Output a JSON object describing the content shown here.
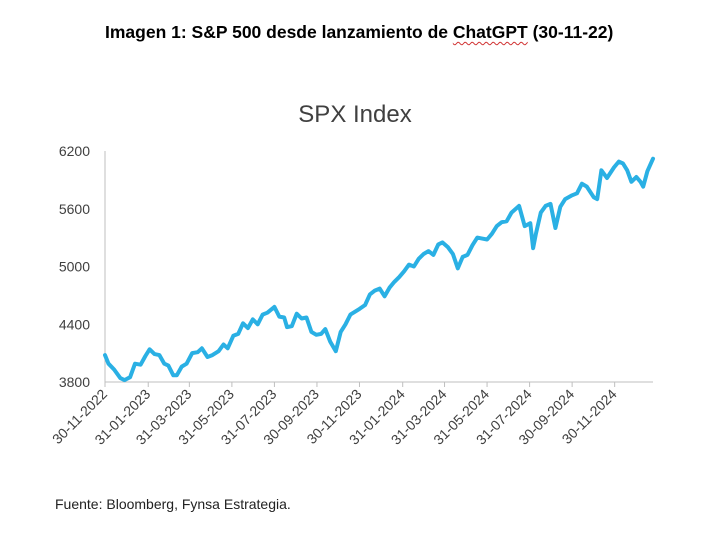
{
  "header": {
    "title_prefix": "Imagen 1: S&P 500 desde lanzamiento de ",
    "title_word": "ChatGPT",
    "title_suffix": " (30-11-22)"
  },
  "footer": {
    "source": "Fuente: Bloomberg, Fynsa Estrategia."
  },
  "colors": {
    "line": "#2ab0e4",
    "axis": "#bfbfbf",
    "text": "#404040"
  },
  "chart_data": {
    "type": "line",
    "title": "SPX Index",
    "xlabel": "",
    "ylabel": "",
    "ylim": [
      3800,
      6200
    ],
    "yticks": [
      3800,
      4400,
      5000,
      5600,
      6200
    ],
    "xlim": [
      "2022-11-30",
      "2025-01-24"
    ],
    "xticks": [
      "30-11-2022",
      "31-01-2023",
      "31-03-2023",
      "31-05-2023",
      "31-07-2023",
      "30-09-2023",
      "30-11-2023",
      "31-01-2024",
      "31-03-2024",
      "31-05-2024",
      "31-07-2024",
      "30-09-2024",
      "30-11-2024"
    ],
    "grid": false,
    "legend": "none",
    "series": [
      {
        "x": [
          "2022-11-30",
          "2022-12-05",
          "2022-12-13",
          "2022-12-22",
          "2022-12-28",
          "2023-01-05",
          "2023-01-12",
          "2023-01-20",
          "2023-01-27",
          "2023-02-02",
          "2023-02-09",
          "2023-02-16",
          "2023-02-23",
          "2023-03-01",
          "2023-03-08",
          "2023-03-13",
          "2023-03-20",
          "2023-03-27",
          "2023-04-04",
          "2023-04-12",
          "2023-04-18",
          "2023-04-26",
          "2023-05-03",
          "2023-05-12",
          "2023-05-19",
          "2023-05-25",
          "2023-06-02",
          "2023-06-09",
          "2023-06-16",
          "2023-06-23",
          "2023-06-30",
          "2023-07-07",
          "2023-07-14",
          "2023-07-21",
          "2023-07-31",
          "2023-08-07",
          "2023-08-14",
          "2023-08-18",
          "2023-08-25",
          "2023-09-01",
          "2023-09-08",
          "2023-09-15",
          "2023-09-22",
          "2023-09-29",
          "2023-10-06",
          "2023-10-12",
          "2023-10-19",
          "2023-10-27",
          "2023-11-03",
          "2023-11-10",
          "2023-11-17",
          "2023-11-30",
          "2023-12-08",
          "2023-12-15",
          "2023-12-22",
          "2023-12-29",
          "2024-01-05",
          "2024-01-12",
          "2024-01-19",
          "2024-01-26",
          "2024-02-02",
          "2024-02-09",
          "2024-02-16",
          "2024-02-23",
          "2024-03-01",
          "2024-03-08",
          "2024-03-15",
          "2024-03-22",
          "2024-03-28",
          "2024-04-05",
          "2024-04-12",
          "2024-04-19",
          "2024-04-26",
          "2024-05-03",
          "2024-05-10",
          "2024-05-17",
          "2024-05-24",
          "2024-05-31",
          "2024-06-07",
          "2024-06-14",
          "2024-06-21",
          "2024-06-28",
          "2024-07-05",
          "2024-07-16",
          "2024-07-24",
          "2024-08-01",
          "2024-08-05",
          "2024-08-09",
          "2024-08-16",
          "2024-08-23",
          "2024-08-30",
          "2024-09-06",
          "2024-09-13",
          "2024-09-20",
          "2024-09-30",
          "2024-10-07",
          "2024-10-14",
          "2024-10-21",
          "2024-10-31",
          "2024-11-05",
          "2024-11-11",
          "2024-11-19",
          "2024-11-29",
          "2024-12-06",
          "2024-12-12",
          "2024-12-18",
          "2024-12-24",
          "2024-12-31",
          "2025-01-06",
          "2025-01-10",
          "2025-01-16",
          "2025-01-24"
        ],
        "y": [
          4080,
          3990,
          3930,
          3840,
          3820,
          3850,
          3990,
          3980,
          4070,
          4140,
          4090,
          4080,
          3990,
          3970,
          3870,
          3870,
          3960,
          3990,
          4100,
          4110,
          4150,
          4060,
          4080,
          4120,
          4190,
          4150,
          4280,
          4300,
          4410,
          4360,
          4450,
          4400,
          4500,
          4520,
          4580,
          4480,
          4470,
          4370,
          4380,
          4510,
          4460,
          4470,
          4320,
          4290,
          4300,
          4350,
          4220,
          4120,
          4320,
          4400,
          4500,
          4560,
          4600,
          4710,
          4750,
          4770,
          4690,
          4780,
          4840,
          4890,
          4950,
          5020,
          5000,
          5080,
          5130,
          5160,
          5120,
          5230,
          5250,
          5200,
          5130,
          4980,
          5100,
          5120,
          5220,
          5300,
          5290,
          5280,
          5340,
          5420,
          5460,
          5470,
          5560,
          5630,
          5420,
          5450,
          5190,
          5340,
          5560,
          5630,
          5650,
          5400,
          5620,
          5700,
          5740,
          5760,
          5860,
          5830,
          5720,
          5700,
          6000,
          5920,
          6030,
          6090,
          6070,
          6000,
          5880,
          5930,
          5880,
          5830,
          5990,
          6120
        ]
      }
    ]
  }
}
